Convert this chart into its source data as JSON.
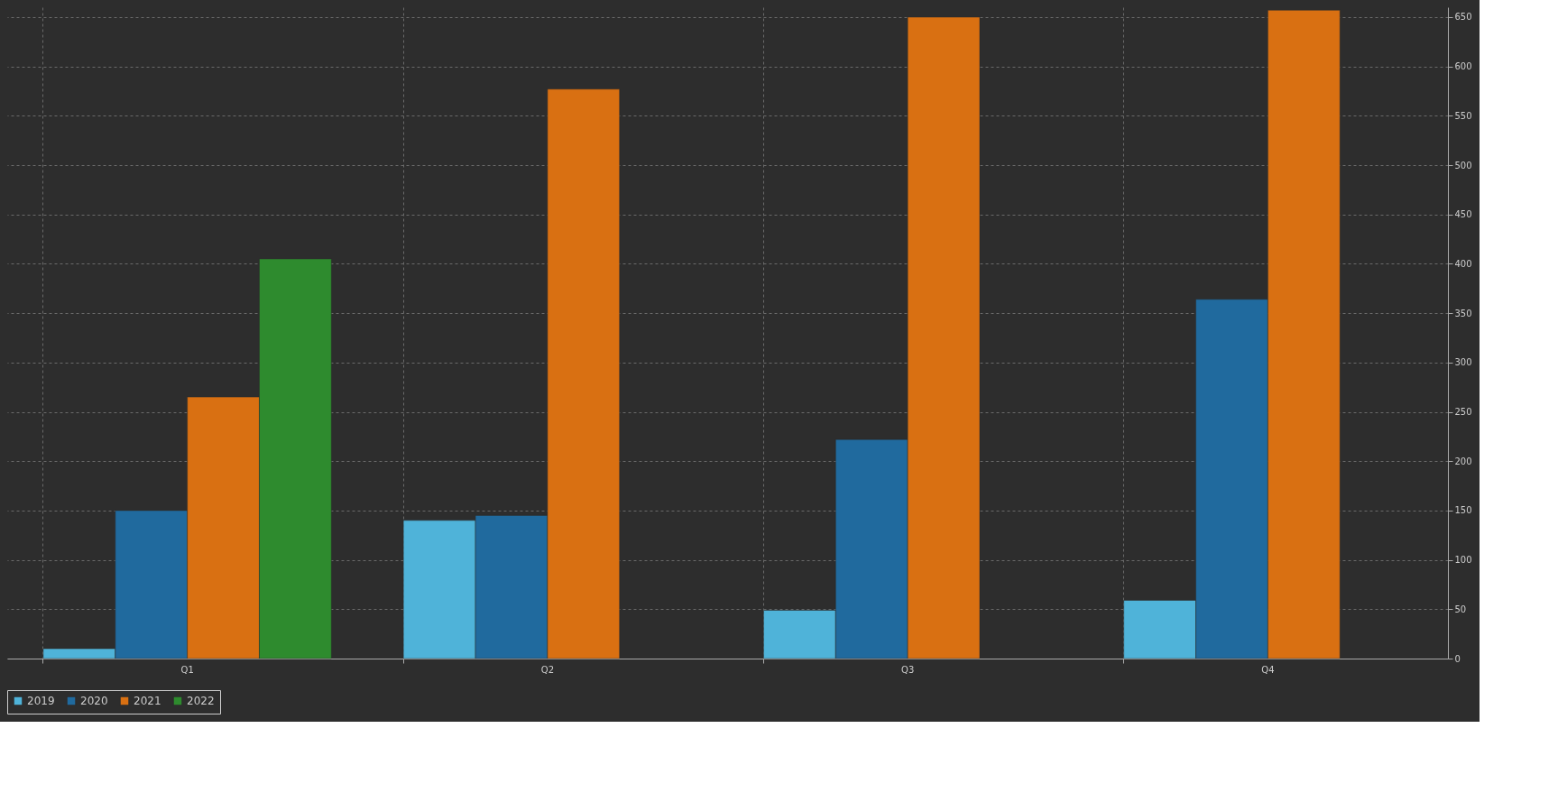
{
  "chart_data": {
    "type": "bar",
    "categories": [
      "Q1",
      "Q2",
      "Q3",
      "Q4"
    ],
    "series": [
      {
        "name": "2019",
        "color": "#4fb3d9",
        "values": [
          10,
          140,
          49,
          59
        ]
      },
      {
        "name": "2020",
        "color": "#206a9e",
        "values": [
          150,
          145,
          222,
          364
        ]
      },
      {
        "name": "2021",
        "color": "#d97012",
        "values": [
          265,
          577,
          650,
          657
        ]
      },
      {
        "name": "2022",
        "color": "#2e8b2e",
        "values": [
          405,
          null,
          null,
          null
        ]
      }
    ],
    "ylim": [
      0,
      660
    ],
    "yticks": [
      0,
      50,
      100,
      150,
      200,
      250,
      300,
      350,
      400,
      450,
      500,
      550,
      600,
      650
    ],
    "grid": true,
    "legend": "bottom"
  }
}
